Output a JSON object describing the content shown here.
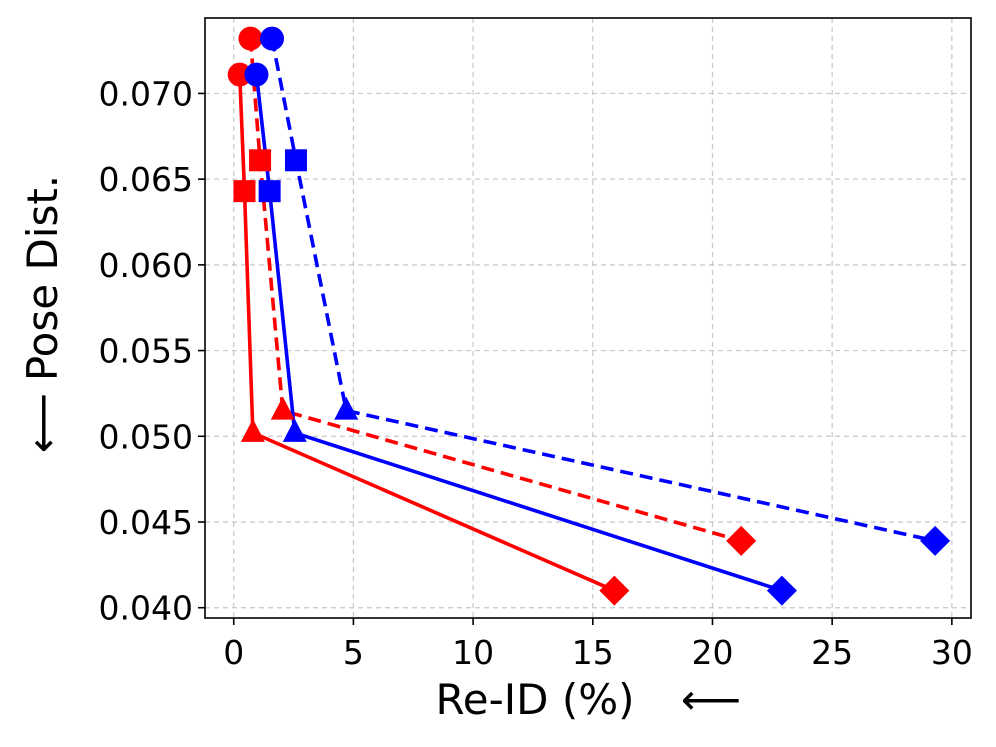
{
  "chart_data": {
    "type": "line",
    "xlabel": "Re-ID (%)",
    "ylabel": "Pose Dist.",
    "xlabel_arrow": "⟵",
    "ylabel_arrow": "⟵",
    "xlim": [
      -1.2,
      30.8
    ],
    "ylim": [
      0.0394,
      0.0744
    ],
    "xticks": [
      0,
      5,
      10,
      15,
      20,
      25,
      30
    ],
    "xtick_labels": [
      "0",
      "5",
      "10",
      "15",
      "20",
      "25",
      "30"
    ],
    "yticks": [
      0.04,
      0.045,
      0.05,
      0.055,
      0.06,
      0.065,
      0.07
    ],
    "ytick_labels": [
      "0.040",
      "0.045",
      "0.050",
      "0.055",
      "0.060",
      "0.065",
      "0.070"
    ],
    "grid": true,
    "marker_order": [
      "circle",
      "square",
      "triangle",
      "diamond"
    ],
    "series": [
      {
        "name": "red-solid",
        "color": "#ff0000",
        "linestyle": "solid",
        "x": [
          0.25,
          0.45,
          0.8,
          15.9
        ],
        "y": [
          0.0711,
          0.0643,
          0.0502,
          0.041
        ]
      },
      {
        "name": "red-dashed",
        "color": "#ff0000",
        "linestyle": "dashed",
        "x": [
          0.7,
          1.1,
          2.05,
          21.2
        ],
        "y": [
          0.0732,
          0.0661,
          0.0515,
          0.0439
        ]
      },
      {
        "name": "blue-solid",
        "color": "#0000ff",
        "linestyle": "solid",
        "x": [
          0.95,
          1.5,
          2.55,
          22.9
        ],
        "y": [
          0.0711,
          0.0643,
          0.0502,
          0.041
        ]
      },
      {
        "name": "blue-dashed",
        "color": "#0000ff",
        "linestyle": "dashed",
        "x": [
          1.6,
          2.6,
          4.7,
          29.3
        ],
        "y": [
          0.0732,
          0.0661,
          0.0515,
          0.0439
        ]
      }
    ]
  }
}
